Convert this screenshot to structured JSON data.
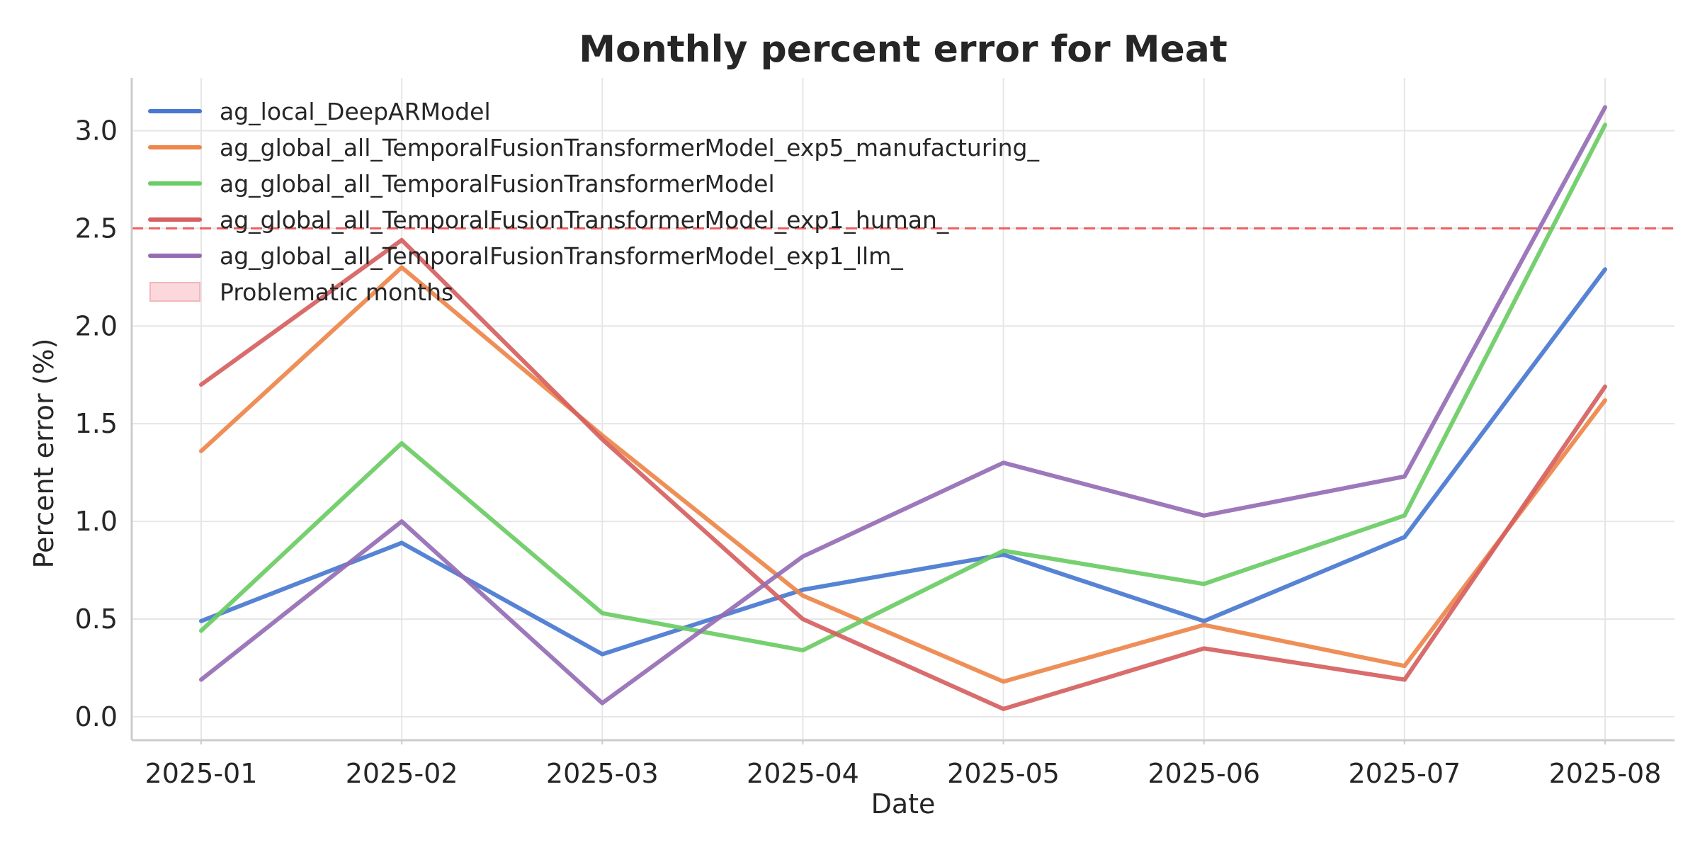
{
  "chart_data": {
    "type": "line",
    "title": "Monthly percent error for Meat",
    "xlabel": "Date",
    "ylabel": "Percent error (%)",
    "x": [
      "2025-01",
      "2025-02",
      "2025-03",
      "2025-04",
      "2025-05",
      "2025-06",
      "2025-07",
      "2025-08"
    ],
    "yticks": [
      "0.0",
      "0.5",
      "1.0",
      "1.5",
      "2.0",
      "2.5",
      "3.0"
    ],
    "ylim": [
      -0.12,
      3.27
    ],
    "grid": true,
    "legend_position": "top-left",
    "series": [
      {
        "name": "ag_local_DeepARModel",
        "color": "#4878d0",
        "values": [
          0.49,
          0.89,
          0.32,
          0.65,
          0.83,
          0.49,
          0.92,
          2.29
        ]
      },
      {
        "name": "ag_global_all_TemporalFusionTransformerModel_exp5_manufacturing_",
        "color": "#ee854a",
        "values": [
          1.36,
          2.3,
          1.44,
          0.62,
          0.18,
          0.47,
          0.26,
          1.62
        ]
      },
      {
        "name": "ag_global_all_TemporalFusionTransformerModel",
        "color": "#6acc64",
        "values": [
          0.44,
          1.4,
          0.53,
          0.34,
          0.85,
          0.68,
          1.03,
          3.03
        ]
      },
      {
        "name": "ag_global_all_TemporalFusionTransformerModel_exp1_human_",
        "color": "#d65f5f",
        "values": [
          1.7,
          2.44,
          1.42,
          0.5,
          0.04,
          0.35,
          0.19,
          1.69
        ]
      },
      {
        "name": "ag_global_all_TemporalFusionTransformerModel_exp1_llm_",
        "color": "#956cb4",
        "values": [
          0.19,
          1.0,
          0.07,
          0.82,
          1.3,
          1.03,
          1.23,
          3.12
        ]
      }
    ],
    "threshold": {
      "value": 2.5,
      "color": "#ee4444"
    },
    "legend_extra": {
      "label": "Problematic months",
      "color": "#fbd8dc"
    }
  }
}
